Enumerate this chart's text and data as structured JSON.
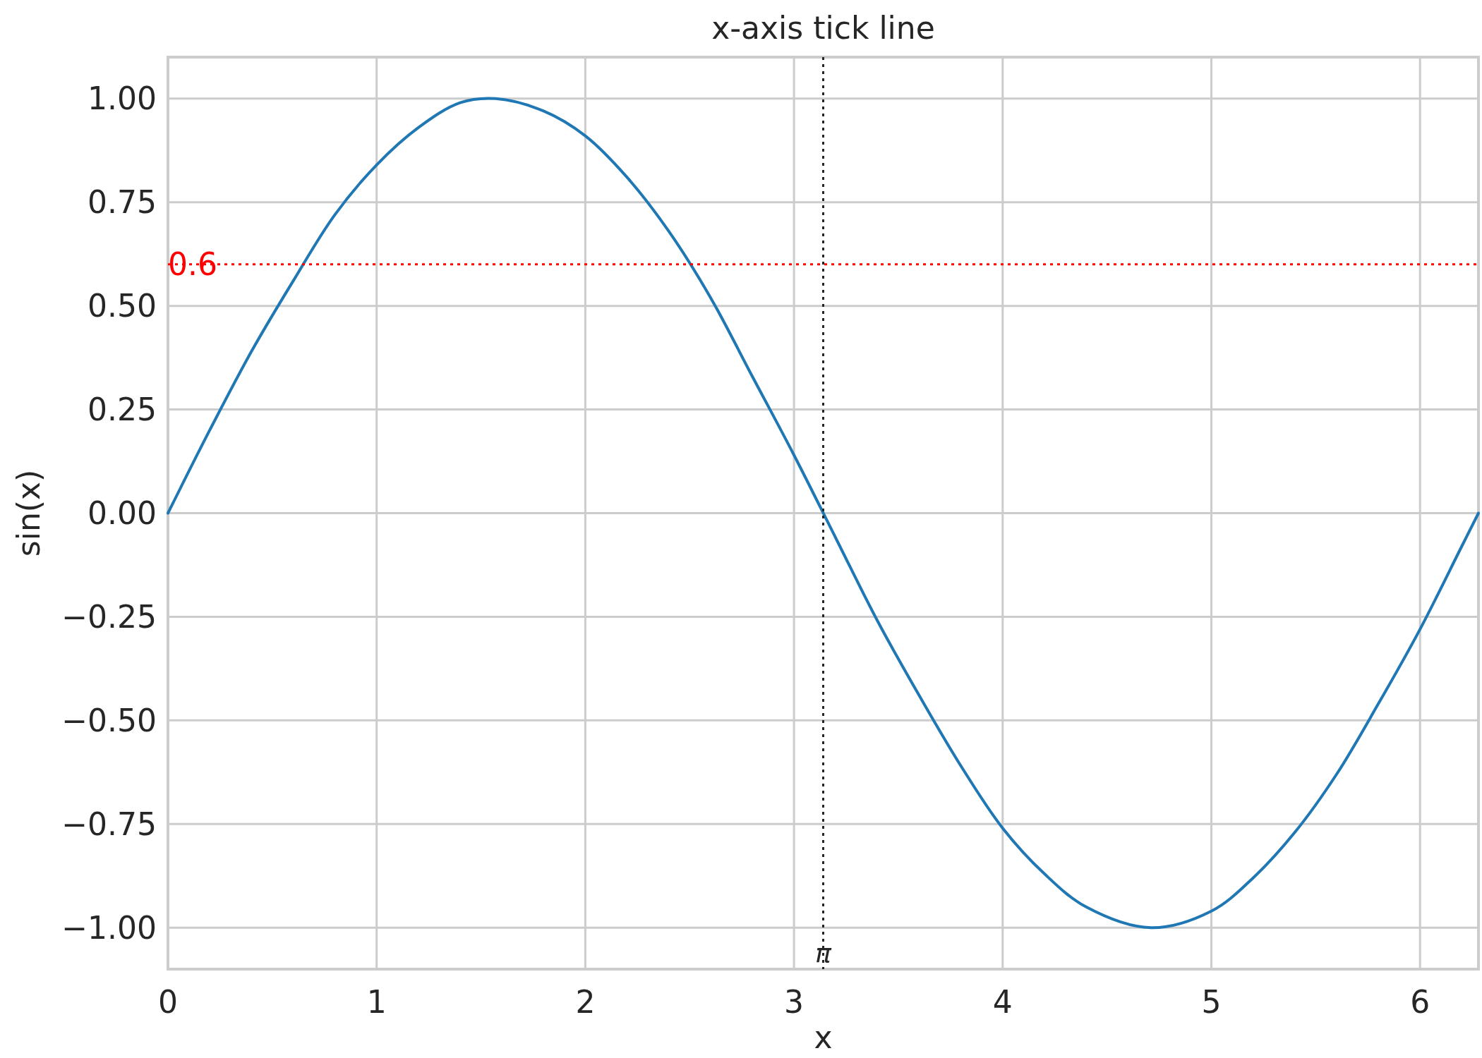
{
  "chart_data": {
    "type": "line",
    "title": "x-axis tick line",
    "xlabel": "x",
    "ylabel": "sin(x)",
    "x": [
      0,
      0.2,
      0.4,
      0.6,
      0.8,
      1.0,
      1.2,
      1.4,
      1.57,
      1.8,
      2.0,
      2.2,
      2.4,
      2.6,
      2.8,
      3.0,
      3.2,
      3.4,
      3.6,
      3.8,
      4.0,
      4.2,
      4.4,
      4.71,
      5.0,
      5.2,
      5.4,
      5.6,
      5.8,
      6.0,
      6.2,
      6.28
    ],
    "series": [
      {
        "color": "#1f77b4",
        "values": [
          0,
          0.2,
          0.39,
          0.56,
          0.72,
          0.84,
          0.93,
          0.99,
          1.0,
          0.97,
          0.91,
          0.81,
          0.68,
          0.52,
          0.33,
          0.14,
          -0.06,
          -0.26,
          -0.44,
          -0.61,
          -0.76,
          -0.87,
          -0.95,
          -1.0,
          -0.96,
          -0.88,
          -0.77,
          -0.63,
          -0.46,
          -0.28,
          -0.08,
          0
        ]
      }
    ],
    "xlim": [
      0,
      6.28
    ],
    "xticks": [
      0,
      1,
      2,
      3,
      4,
      5,
      6
    ],
    "ylim": [
      -1.1,
      1.1
    ],
    "yticks": [
      {
        "value": -1,
        "label": "−1.00"
      },
      {
        "value": -0.75,
        "label": "−0.75"
      },
      {
        "value": -0.5,
        "label": "−0.50"
      },
      {
        "value": -0.25,
        "label": "−0.25"
      },
      {
        "value": 0,
        "label": "0.00"
      },
      {
        "value": 0.25,
        "label": "0.25"
      },
      {
        "value": 0.5,
        "label": "0.50"
      },
      {
        "value": 0.75,
        "label": "0.75"
      },
      {
        "value": 1,
        "label": "1.00"
      }
    ],
    "grid": true,
    "ref_lines": [
      {
        "axis": "y",
        "value": 0.6,
        "label": "0.6",
        "color": "#ff0000",
        "line_style": "dotted"
      },
      {
        "axis": "x",
        "value": 3.14,
        "label": "π",
        "color": "#262626",
        "line_style": "dotted"
      }
    ]
  }
}
